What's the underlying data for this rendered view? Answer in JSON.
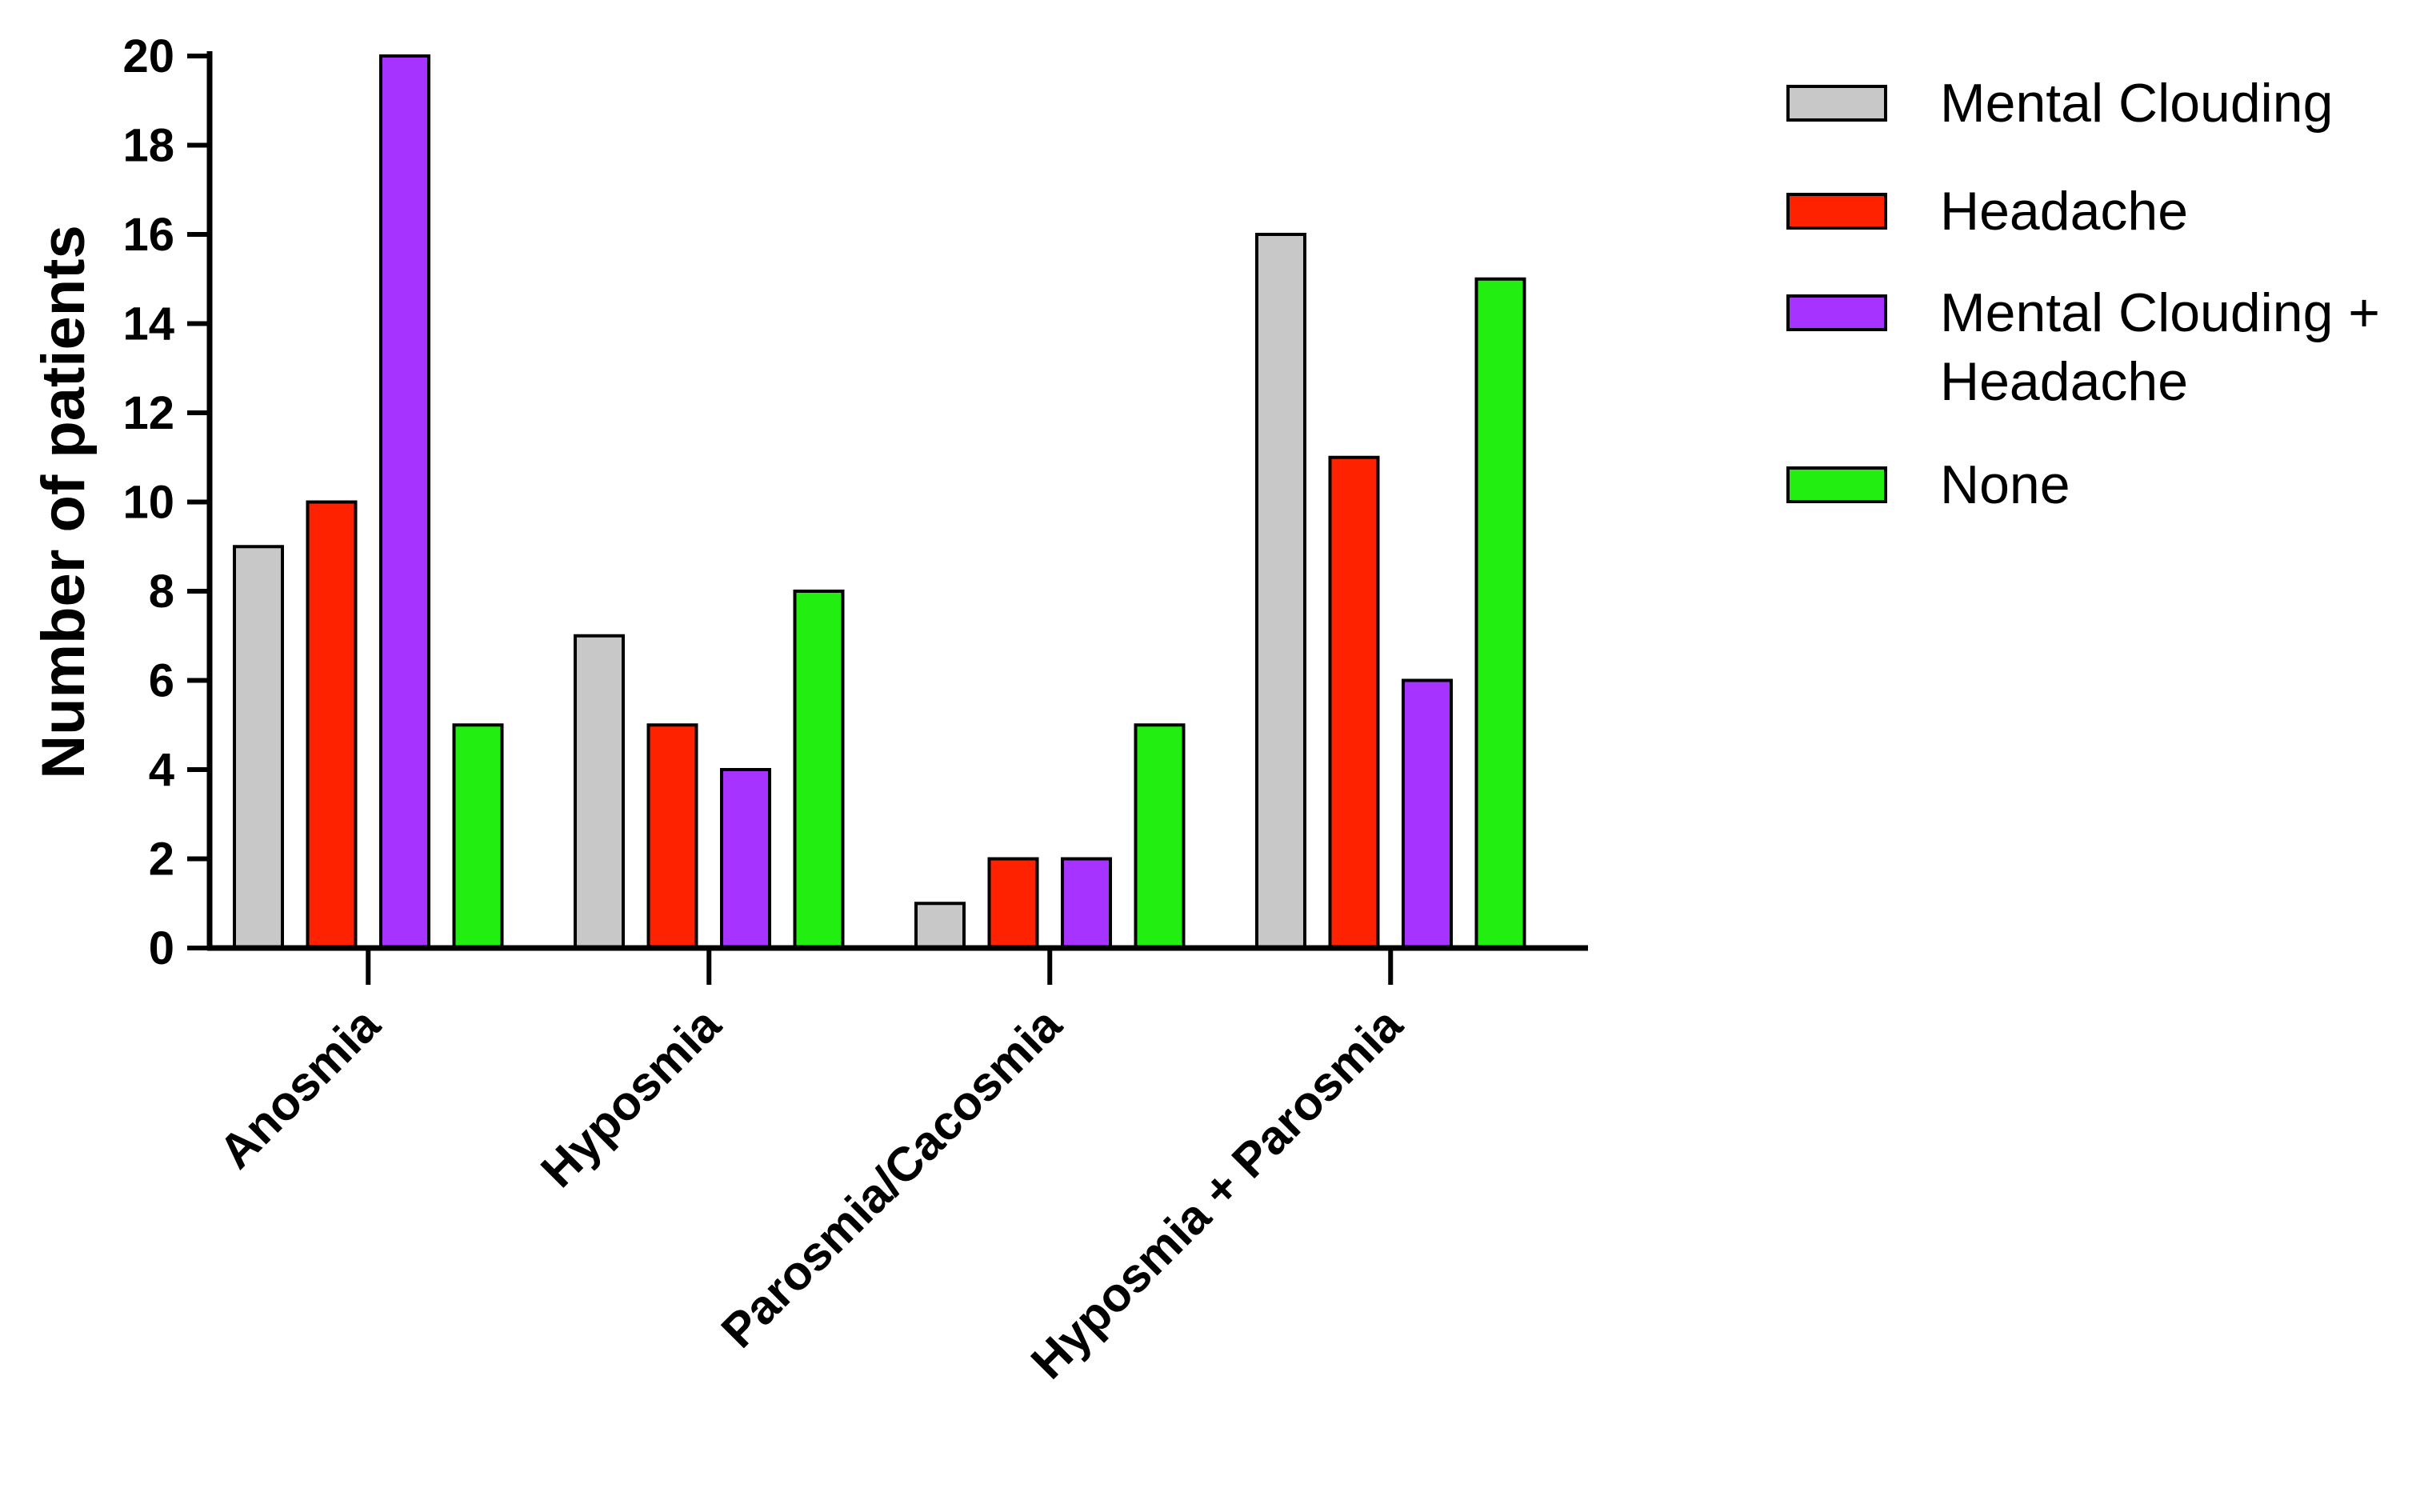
{
  "chart_data": {
    "type": "bar",
    "title": "",
    "xlabel": "",
    "ylabel": "Number of patients",
    "ylim": [
      0,
      20
    ],
    "yticks": [
      0,
      2,
      4,
      6,
      8,
      10,
      12,
      14,
      16,
      18,
      20
    ],
    "grid": false,
    "legend_position": "top-right",
    "categories": [
      "Anosmia",
      "Hyposmia",
      "Parosmia/Cacosmia",
      "Hyposmia + Parosmia"
    ],
    "series": [
      {
        "name": "Mental Clouding",
        "legend_lines": [
          "Mental Clouding"
        ],
        "color": "#c8c8c8",
        "values": [
          9,
          7,
          1,
          16
        ]
      },
      {
        "name": "Headache",
        "legend_lines": [
          "Headache"
        ],
        "color": "#ff2200",
        "values": [
          10,
          5,
          2,
          11
        ]
      },
      {
        "name": "Mental Clouding + Headache",
        "legend_lines": [
          "Mental Clouding +",
          "Headache"
        ],
        "color": "#a633ff",
        "values": [
          20,
          4,
          2,
          6
        ]
      },
      {
        "name": "None",
        "legend_lines": [
          "None"
        ],
        "color": "#22ee11",
        "values": [
          5,
          8,
          5,
          15
        ]
      }
    ]
  }
}
